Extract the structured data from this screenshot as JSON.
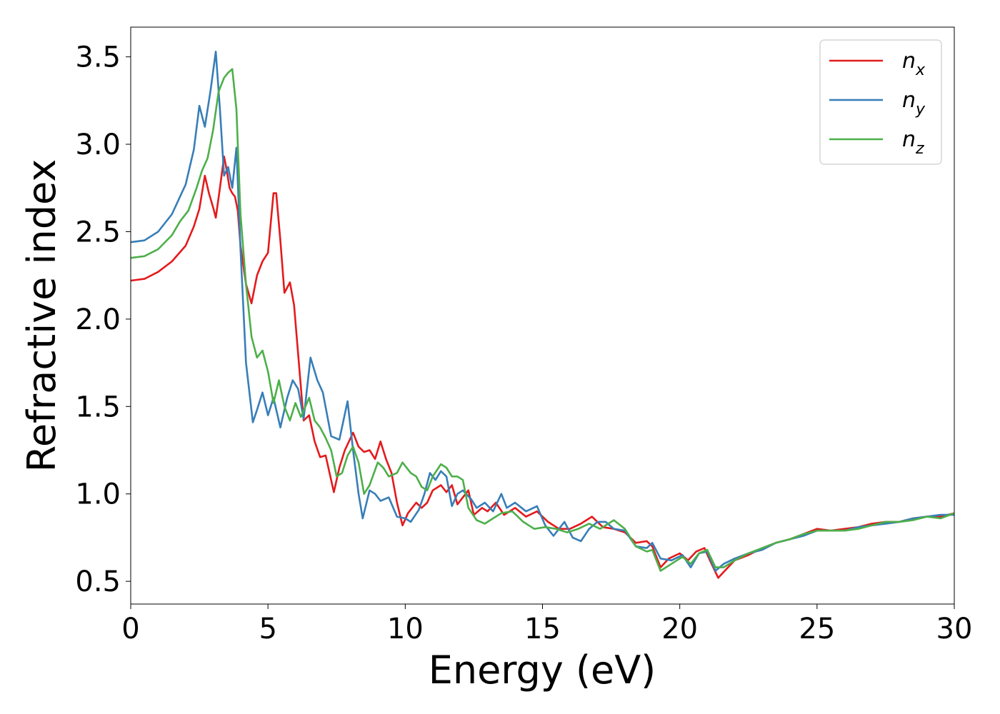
{
  "chart_data": {
    "type": "line",
    "title": "",
    "xlabel": "Energy (eV)",
    "ylabel": "Refractive index",
    "xlim": [
      0,
      30
    ],
    "ylim": [
      0.37,
      3.67
    ],
    "x_ticks": [
      "0",
      "5",
      "10",
      "15",
      "20",
      "25",
      "30"
    ],
    "y_ticks": [
      "0.5",
      "1.0",
      "1.5",
      "2.0",
      "2.5",
      "3.0",
      "3.5"
    ],
    "grid": false,
    "legend_position": "top-right",
    "series": [
      {
        "name": "n_x",
        "label_main": "n",
        "label_sub": "x",
        "color": "#e41a1c",
        "points": [
          [
            0,
            2.22
          ],
          [
            0.5,
            2.23
          ],
          [
            1.0,
            2.27
          ],
          [
            1.5,
            2.33
          ],
          [
            2.0,
            2.42
          ],
          [
            2.3,
            2.53
          ],
          [
            2.5,
            2.63
          ],
          [
            2.7,
            2.82
          ],
          [
            2.85,
            2.72
          ],
          [
            3.0,
            2.64
          ],
          [
            3.1,
            2.58
          ],
          [
            3.25,
            2.75
          ],
          [
            3.4,
            2.93
          ],
          [
            3.5,
            2.85
          ],
          [
            3.6,
            2.75
          ],
          [
            3.7,
            2.72
          ],
          [
            3.8,
            2.7
          ],
          [
            3.9,
            2.62
          ],
          [
            4.0,
            2.42
          ],
          [
            4.2,
            2.2
          ],
          [
            4.4,
            2.09
          ],
          [
            4.6,
            2.25
          ],
          [
            4.8,
            2.33
          ],
          [
            5.0,
            2.38
          ],
          [
            5.2,
            2.72
          ],
          [
            5.3,
            2.72
          ],
          [
            5.45,
            2.45
          ],
          [
            5.6,
            2.15
          ],
          [
            5.8,
            2.21
          ],
          [
            5.95,
            2.08
          ],
          [
            6.1,
            1.8
          ],
          [
            6.3,
            1.42
          ],
          [
            6.5,
            1.45
          ],
          [
            6.7,
            1.3
          ],
          [
            6.9,
            1.21
          ],
          [
            7.1,
            1.22
          ],
          [
            7.4,
            1.01
          ],
          [
            7.6,
            1.15
          ],
          [
            7.8,
            1.25
          ],
          [
            8.1,
            1.35
          ],
          [
            8.3,
            1.27
          ],
          [
            8.5,
            1.24
          ],
          [
            8.7,
            1.25
          ],
          [
            8.9,
            1.2
          ],
          [
            9.1,
            1.3
          ],
          [
            9.3,
            1.2
          ],
          [
            9.5,
            1.12
          ],
          [
            9.7,
            0.95
          ],
          [
            9.9,
            0.82
          ],
          [
            10.1,
            0.89
          ],
          [
            10.4,
            0.95
          ],
          [
            10.6,
            0.92
          ],
          [
            10.8,
            0.95
          ],
          [
            11.0,
            1.02
          ],
          [
            11.3,
            1.05
          ],
          [
            11.5,
            1.01
          ],
          [
            11.7,
            1.05
          ],
          [
            11.9,
            0.94
          ],
          [
            12.1,
            0.98
          ],
          [
            12.3,
            1.02
          ],
          [
            12.5,
            0.88
          ],
          [
            12.8,
            0.92
          ],
          [
            13.0,
            0.9
          ],
          [
            13.3,
            0.95
          ],
          [
            13.6,
            0.88
          ],
          [
            14.0,
            0.92
          ],
          [
            14.4,
            0.87
          ],
          [
            14.8,
            0.9
          ],
          [
            15.2,
            0.84
          ],
          [
            15.6,
            0.8
          ],
          [
            16.0,
            0.8
          ],
          [
            16.4,
            0.83
          ],
          [
            16.8,
            0.87
          ],
          [
            17.2,
            0.81
          ],
          [
            17.6,
            0.8
          ],
          [
            18.0,
            0.78
          ],
          [
            18.4,
            0.72
          ],
          [
            18.8,
            0.73
          ],
          [
            19.0,
            0.7
          ],
          [
            19.3,
            0.58
          ],
          [
            19.6,
            0.63
          ],
          [
            20.0,
            0.66
          ],
          [
            20.3,
            0.62
          ],
          [
            20.6,
            0.67
          ],
          [
            20.9,
            0.69
          ],
          [
            21.1,
            0.62
          ],
          [
            21.4,
            0.52
          ],
          [
            21.7,
            0.57
          ],
          [
            22.0,
            0.62
          ],
          [
            22.5,
            0.65
          ],
          [
            23.0,
            0.69
          ],
          [
            23.5,
            0.72
          ],
          [
            24.0,
            0.74
          ],
          [
            24.5,
            0.77
          ],
          [
            25.0,
            0.8
          ],
          [
            25.5,
            0.79
          ],
          [
            26.0,
            0.8
          ],
          [
            26.5,
            0.81
          ],
          [
            27.0,
            0.83
          ],
          [
            27.5,
            0.84
          ],
          [
            28.0,
            0.84
          ],
          [
            28.5,
            0.86
          ],
          [
            29.0,
            0.87
          ],
          [
            29.5,
            0.87
          ],
          [
            30.0,
            0.89
          ]
        ]
      },
      {
        "name": "n_y",
        "label_main": "n",
        "label_sub": "y",
        "color": "#377eb8",
        "points": [
          [
            0,
            2.44
          ],
          [
            0.5,
            2.45
          ],
          [
            1.0,
            2.5
          ],
          [
            1.5,
            2.6
          ],
          [
            2.0,
            2.77
          ],
          [
            2.3,
            2.97
          ],
          [
            2.5,
            3.22
          ],
          [
            2.7,
            3.1
          ],
          [
            2.9,
            3.3
          ],
          [
            3.1,
            3.53
          ],
          [
            3.25,
            3.2
          ],
          [
            3.4,
            2.82
          ],
          [
            3.55,
            2.87
          ],
          [
            3.7,
            2.75
          ],
          [
            3.85,
            2.98
          ],
          [
            4.0,
            2.4
          ],
          [
            4.2,
            1.75
          ],
          [
            4.45,
            1.41
          ],
          [
            4.6,
            1.48
          ],
          [
            4.8,
            1.58
          ],
          [
            5.0,
            1.45
          ],
          [
            5.2,
            1.55
          ],
          [
            5.45,
            1.38
          ],
          [
            5.7,
            1.55
          ],
          [
            5.9,
            1.65
          ],
          [
            6.1,
            1.6
          ],
          [
            6.3,
            1.43
          ],
          [
            6.55,
            1.78
          ],
          [
            6.8,
            1.65
          ],
          [
            7.0,
            1.58
          ],
          [
            7.3,
            1.33
          ],
          [
            7.6,
            1.31
          ],
          [
            7.9,
            1.53
          ],
          [
            8.1,
            1.25
          ],
          [
            8.3,
            1.0
          ],
          [
            8.45,
            0.86
          ],
          [
            8.7,
            1.02
          ],
          [
            8.9,
            1.0
          ],
          [
            9.1,
            0.96
          ],
          [
            9.4,
            0.98
          ],
          [
            9.7,
            0.87
          ],
          [
            10.0,
            0.86
          ],
          [
            10.2,
            0.84
          ],
          [
            10.5,
            0.91
          ],
          [
            10.7,
            1.0
          ],
          [
            10.9,
            1.12
          ],
          [
            11.1,
            1.08
          ],
          [
            11.3,
            1.13
          ],
          [
            11.5,
            1.1
          ],
          [
            11.7,
            0.93
          ],
          [
            11.9,
            1.0
          ],
          [
            12.1,
            1.02
          ],
          [
            12.4,
            0.97
          ],
          [
            12.6,
            0.92
          ],
          [
            12.9,
            0.95
          ],
          [
            13.2,
            0.9
          ],
          [
            13.5,
            1.0
          ],
          [
            13.7,
            0.92
          ],
          [
            14.0,
            0.95
          ],
          [
            14.4,
            0.9
          ],
          [
            14.8,
            0.93
          ],
          [
            15.1,
            0.82
          ],
          [
            15.4,
            0.76
          ],
          [
            15.8,
            0.84
          ],
          [
            16.1,
            0.75
          ],
          [
            16.4,
            0.73
          ],
          [
            16.7,
            0.8
          ],
          [
            17.0,
            0.84
          ],
          [
            17.3,
            0.84
          ],
          [
            17.6,
            0.8
          ],
          [
            18.0,
            0.79
          ],
          [
            18.4,
            0.7
          ],
          [
            18.8,
            0.69
          ],
          [
            19.0,
            0.72
          ],
          [
            19.3,
            0.63
          ],
          [
            19.7,
            0.62
          ],
          [
            20.1,
            0.65
          ],
          [
            20.4,
            0.58
          ],
          [
            20.7,
            0.66
          ],
          [
            21.0,
            0.67
          ],
          [
            21.3,
            0.56
          ],
          [
            21.6,
            0.6
          ],
          [
            22.0,
            0.63
          ],
          [
            22.5,
            0.66
          ],
          [
            23.0,
            0.68
          ],
          [
            23.5,
            0.72
          ],
          [
            24.0,
            0.74
          ],
          [
            24.5,
            0.76
          ],
          [
            25.0,
            0.79
          ],
          [
            25.5,
            0.79
          ],
          [
            26.0,
            0.79
          ],
          [
            26.5,
            0.81
          ],
          [
            27.0,
            0.82
          ],
          [
            27.5,
            0.83
          ],
          [
            28.0,
            0.84
          ],
          [
            28.5,
            0.86
          ],
          [
            29.0,
            0.87
          ],
          [
            29.5,
            0.88
          ],
          [
            30.0,
            0.88
          ]
        ]
      },
      {
        "name": "n_z",
        "label_main": "n",
        "label_sub": "z",
        "color": "#4daf4a",
        "points": [
          [
            0,
            2.35
          ],
          [
            0.5,
            2.36
          ],
          [
            1.0,
            2.4
          ],
          [
            1.5,
            2.48
          ],
          [
            1.8,
            2.56
          ],
          [
            2.1,
            2.62
          ],
          [
            2.4,
            2.75
          ],
          [
            2.6,
            2.85
          ],
          [
            2.8,
            2.92
          ],
          [
            3.0,
            3.08
          ],
          [
            3.2,
            3.3
          ],
          [
            3.4,
            3.38
          ],
          [
            3.55,
            3.41
          ],
          [
            3.7,
            3.43
          ],
          [
            3.85,
            3.2
          ],
          [
            4.0,
            2.6
          ],
          [
            4.2,
            2.2
          ],
          [
            4.4,
            1.9
          ],
          [
            4.6,
            1.78
          ],
          [
            4.8,
            1.82
          ],
          [
            5.0,
            1.7
          ],
          [
            5.2,
            1.52
          ],
          [
            5.4,
            1.65
          ],
          [
            5.6,
            1.5
          ],
          [
            5.8,
            1.42
          ],
          [
            6.0,
            1.52
          ],
          [
            6.2,
            1.44
          ],
          [
            6.5,
            1.55
          ],
          [
            6.7,
            1.42
          ],
          [
            6.9,
            1.38
          ],
          [
            7.1,
            1.32
          ],
          [
            7.3,
            1.25
          ],
          [
            7.5,
            1.1
          ],
          [
            7.7,
            1.12
          ],
          [
            7.9,
            1.22
          ],
          [
            8.1,
            1.27
          ],
          [
            8.3,
            1.18
          ],
          [
            8.5,
            1.0
          ],
          [
            8.7,
            1.05
          ],
          [
            9.0,
            1.18
          ],
          [
            9.2,
            1.15
          ],
          [
            9.4,
            1.1
          ],
          [
            9.7,
            1.12
          ],
          [
            9.9,
            1.18
          ],
          [
            10.2,
            1.12
          ],
          [
            10.4,
            1.1
          ],
          [
            10.6,
            1.04
          ],
          [
            10.8,
            1.02
          ],
          [
            11.0,
            1.1
          ],
          [
            11.3,
            1.17
          ],
          [
            11.5,
            1.15
          ],
          [
            11.7,
            1.1
          ],
          [
            11.9,
            1.1
          ],
          [
            12.1,
            1.08
          ],
          [
            12.3,
            0.92
          ],
          [
            12.6,
            0.85
          ],
          [
            12.9,
            0.83
          ],
          [
            13.2,
            0.86
          ],
          [
            13.5,
            0.89
          ],
          [
            13.9,
            0.9
          ],
          [
            14.3,
            0.84
          ],
          [
            14.7,
            0.8
          ],
          [
            15.1,
            0.81
          ],
          [
            15.5,
            0.8
          ],
          [
            15.9,
            0.78
          ],
          [
            16.3,
            0.8
          ],
          [
            16.7,
            0.83
          ],
          [
            17.1,
            0.8
          ],
          [
            17.6,
            0.85
          ],
          [
            18.0,
            0.8
          ],
          [
            18.4,
            0.7
          ],
          [
            18.8,
            0.67
          ],
          [
            19.0,
            0.68
          ],
          [
            19.3,
            0.56
          ],
          [
            19.7,
            0.6
          ],
          [
            20.1,
            0.64
          ],
          [
            20.4,
            0.6
          ],
          [
            20.7,
            0.66
          ],
          [
            21.0,
            0.68
          ],
          [
            21.3,
            0.58
          ],
          [
            21.6,
            0.58
          ],
          [
            22.0,
            0.62
          ],
          [
            22.5,
            0.66
          ],
          [
            23.0,
            0.69
          ],
          [
            23.5,
            0.72
          ],
          [
            24.0,
            0.74
          ],
          [
            24.5,
            0.77
          ],
          [
            25.0,
            0.79
          ],
          [
            25.5,
            0.79
          ],
          [
            26.0,
            0.79
          ],
          [
            26.5,
            0.8
          ],
          [
            27.0,
            0.82
          ],
          [
            27.5,
            0.84
          ],
          [
            28.0,
            0.84
          ],
          [
            28.5,
            0.85
          ],
          [
            29.0,
            0.87
          ],
          [
            29.5,
            0.86
          ],
          [
            30.0,
            0.89
          ]
        ]
      }
    ]
  }
}
